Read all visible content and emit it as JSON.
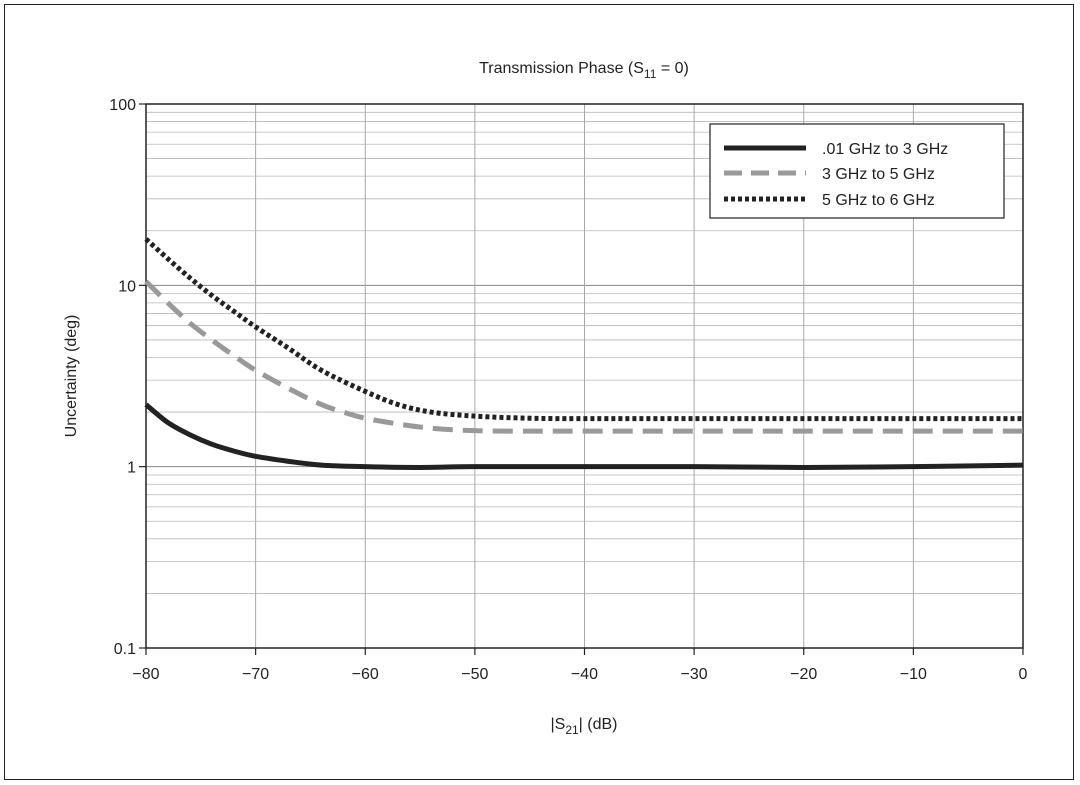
{
  "chart_data": {
    "type": "line",
    "title_main": "Transmission Phase (S",
    "title_sub": "11",
    "title_end": " = 0)",
    "xlabel_main": "|S",
    "xlabel_sub": "21",
    "xlabel_end": "| (dB)",
    "ylabel": "Uncertainty (deg)",
    "xlim": [
      -80,
      0
    ],
    "ylim": [
      0.1,
      100
    ],
    "y_scale": "log",
    "grid": true,
    "legend_position": "top-right",
    "x_ticks": [
      -80,
      -70,
      -60,
      -50,
      -40,
      -30,
      -20,
      -10,
      0
    ],
    "x_tick_labels": [
      "−80",
      "−70",
      "−60",
      "−50",
      "−40",
      "−30",
      "−20",
      "−10",
      "0"
    ],
    "y_ticks": [
      0.1,
      1,
      10,
      100
    ],
    "y_tick_labels": [
      "0.1",
      "1",
      "10",
      "100"
    ],
    "series": [
      {
        "name": ".01 GHz to 3 GHz",
        "style": "solid",
        "color": "#222222",
        "x": [
          -80,
          -78,
          -76,
          -74,
          -72,
          -70,
          -67,
          -64,
          -60,
          -55,
          -50,
          -40,
          -30,
          -20,
          -10,
          0
        ],
        "y": [
          2.2,
          1.75,
          1.5,
          1.33,
          1.22,
          1.14,
          1.07,
          1.02,
          1.0,
          0.99,
          1.0,
          1.0,
          1.0,
          0.99,
          1.0,
          1.02
        ]
      },
      {
        "name": "3 GHz to 5 GHz",
        "style": "dashed",
        "color": "#999999",
        "x": [
          -80,
          -78,
          -76,
          -74,
          -72,
          -70,
          -67,
          -64,
          -62,
          -60,
          -57,
          -54,
          -50,
          -45,
          -40,
          -30,
          -20,
          -10,
          0
        ],
        "y": [
          10.5,
          8.0,
          6.2,
          5.0,
          4.1,
          3.4,
          2.7,
          2.2,
          2.0,
          1.85,
          1.72,
          1.63,
          1.58,
          1.57,
          1.57,
          1.57,
          1.57,
          1.57,
          1.57
        ]
      },
      {
        "name": "5 GHz to 6 GHz",
        "style": "dotted",
        "color": "#222222",
        "x": [
          -80,
          -78,
          -76,
          -74,
          -72,
          -70,
          -67,
          -64,
          -60,
          -57,
          -54,
          -50,
          -45,
          -40,
          -30,
          -20,
          -10,
          0
        ],
        "y": [
          18,
          14,
          11,
          8.8,
          7.2,
          5.9,
          4.5,
          3.4,
          2.6,
          2.2,
          2.0,
          1.9,
          1.85,
          1.84,
          1.84,
          1.84,
          1.84,
          1.84
        ]
      }
    ]
  }
}
